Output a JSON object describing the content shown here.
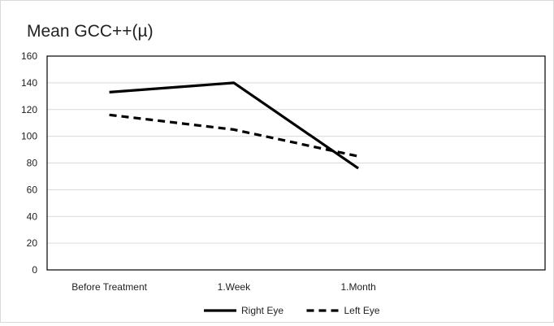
{
  "chart_data": {
    "type": "line",
    "title": "Mean GCC++(µ)",
    "categories": [
      "Before Treatment",
      "1.Week",
      "1.Month"
    ],
    "series": [
      {
        "name": "Right Eye",
        "values": [
          133,
          140,
          76
        ],
        "color": "#000000",
        "dash": "solid"
      },
      {
        "name": "Left Eye",
        "values": [
          116,
          105,
          85
        ],
        "color": "#000000",
        "dash": "dashed"
      }
    ],
    "xlabel": "",
    "ylabel": "",
    "ylim": [
      0,
      160
    ],
    "yticks": [
      0,
      20,
      40,
      60,
      80,
      100,
      120,
      140,
      160
    ],
    "grid": true,
    "legend_position": "bottom"
  }
}
